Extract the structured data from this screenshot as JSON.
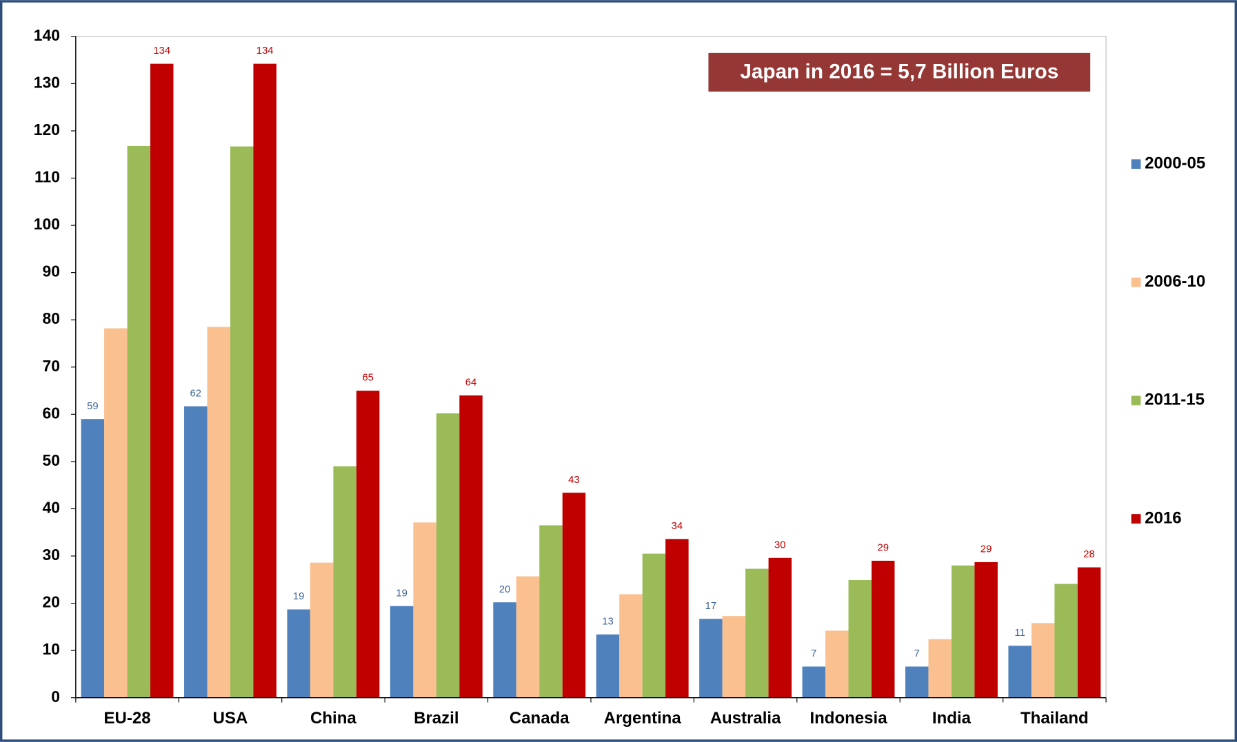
{
  "chart_data": {
    "type": "bar",
    "annotation": "Japan in 2016 = 5,7 Billion Euros",
    "categories": [
      "EU-28",
      "USA",
      "China",
      "Brazil",
      "Canada",
      "Argentina",
      "Australia",
      "Indonesia",
      "India",
      "Thailand"
    ],
    "series": [
      {
        "name": "2000-05",
        "color": "#4f81bd",
        "values": [
          59,
          61.7,
          18.7,
          19.4,
          20.2,
          13.4,
          16.7,
          6.6,
          6.6,
          11
        ],
        "value_labels": [
          "59",
          "62",
          "19",
          "19",
          "20",
          "13",
          "17",
          "7",
          "7",
          "11"
        ]
      },
      {
        "name": "2006-10",
        "color": "#fac090",
        "values": [
          78.2,
          78.5,
          28.6,
          37.1,
          25.7,
          21.9,
          17.3,
          14.2,
          12.4,
          15.8
        ]
      },
      {
        "name": "2011-15",
        "color": "#9bbb59",
        "values": [
          116.8,
          116.7,
          49,
          60.2,
          36.5,
          30.5,
          27.3,
          24.9,
          28,
          24.1
        ]
      },
      {
        "name": "2016",
        "color": "#c00000",
        "values": [
          134.2,
          134.2,
          65,
          64,
          43.4,
          33.6,
          29.6,
          29,
          28.7,
          27.6
        ],
        "value_labels": [
          "134",
          "134",
          "65",
          "64",
          "43",
          "34",
          "30",
          "29",
          "29",
          "28"
        ]
      }
    ],
    "ylim": [
      0,
      140
    ],
    "yticks": [
      0,
      10,
      20,
      30,
      40,
      50,
      60,
      70,
      80,
      90,
      100,
      110,
      120,
      130,
      140
    ],
    "legend": "right"
  }
}
